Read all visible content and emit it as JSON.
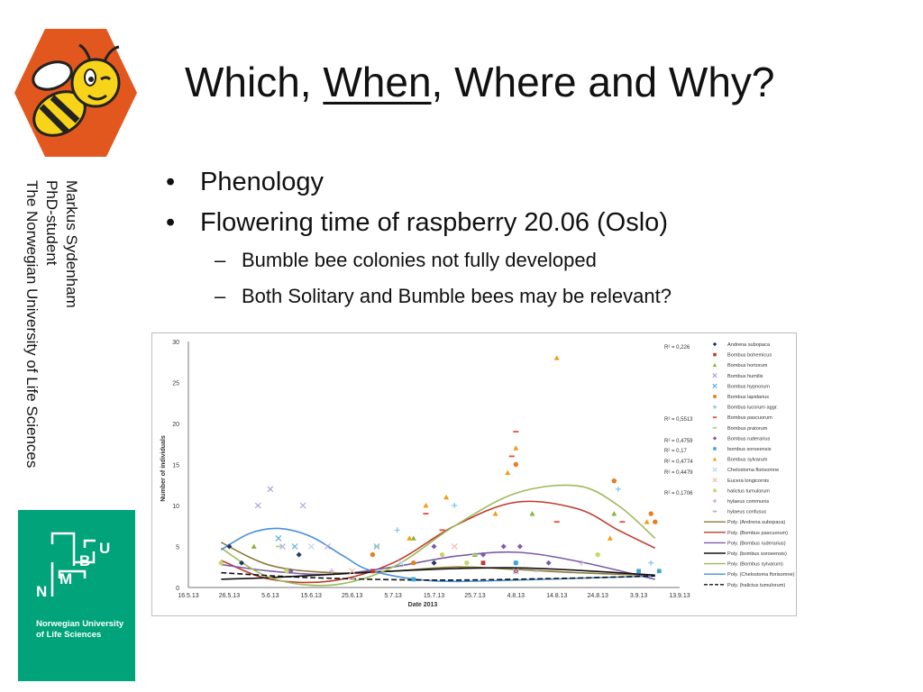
{
  "slide": {
    "title_prefix": "Which, ",
    "title_underlined": "When",
    "title_suffix": ", Where and Why?",
    "author": {
      "name": "Markus Sydenham",
      "role": "PhD-student",
      "institution": "The Norwegian University of Life Sciences"
    },
    "bullets": [
      {
        "text": "Phenology",
        "level": 1
      },
      {
        "text": "Flowering time of raspberry 20.06 (Oslo)",
        "level": 1
      },
      {
        "text": "Bumble bee colonies not fully developed",
        "level": 2
      },
      {
        "text": "Both Solitary and Bumble bees may be relevant?",
        "level": 2
      }
    ],
    "logos": {
      "bee_logo": "bee-mascot",
      "nmbu_letters": [
        "N",
        "M",
        "B",
        "U"
      ],
      "nmbu_name_line1": "Norwegian University",
      "nmbu_name_line2": "of Life Sciences",
      "nmbu_color": "#00a37a",
      "bee_hex_color": "#e2571e"
    }
  },
  "chart_data": {
    "type": "scatter",
    "title": "",
    "xlabel": "Date 2013",
    "ylabel": "Number of individuals",
    "ylim": [
      0,
      30
    ],
    "yticks": [
      0,
      5,
      10,
      15,
      20,
      25,
      30
    ],
    "xticks": [
      "16.5.13",
      "26.5.13",
      "5.6.13",
      "15.6.13",
      "25.6.13",
      "5.7.13",
      "15.7.13",
      "25.7.13",
      "4.8.13",
      "14.8.13",
      "24.8.13",
      "3.9.13",
      "13.9.13"
    ],
    "x_range_days": [
      0,
      120
    ],
    "grid": false,
    "legend_placement": "right",
    "r2_labels": [
      "R² = 0,226",
      "R² = 0,5513",
      "R² = 0,4759",
      "R² = 0,17",
      "R² = 0,4774",
      "R² = 0,4479",
      "R² = 0,1706"
    ],
    "legend": [
      {
        "name": "Andrena subopaca",
        "marker": "diamond",
        "color": "#1f3864"
      },
      {
        "name": "Bombus bohemicus",
        "marker": "square",
        "color": "#c0392b"
      },
      {
        "name": "Bombus hortorum",
        "marker": "triangle",
        "color": "#8db33a"
      },
      {
        "name": "Bombus humilis",
        "marker": "x",
        "color": "#a6a6d9"
      },
      {
        "name": "Bombus hypnorum",
        "marker": "x",
        "color": "#5dade2"
      },
      {
        "name": "Bombus lapidarius",
        "marker": "circle",
        "color": "#e67e22"
      },
      {
        "name": "Bombus lucorum aggr.",
        "marker": "plus",
        "color": "#85c1e9"
      },
      {
        "name": "Bombus pascuorum",
        "marker": "dash",
        "color": "#e74c3c"
      },
      {
        "name": "Bombus pratorum",
        "marker": "dash",
        "color": "#a9d18e"
      },
      {
        "name": "Bombus ruderarius",
        "marker": "diamond",
        "color": "#7d5ba6"
      },
      {
        "name": "bombus soroeensis",
        "marker": "square",
        "color": "#3fa7d6"
      },
      {
        "name": "Bombus sylvarum",
        "marker": "triangle",
        "color": "#f39c12"
      },
      {
        "name": "Chelostoma florisomne",
        "marker": "x",
        "color": "#b8d6e8"
      },
      {
        "name": "Eucera longicornis",
        "marker": "x",
        "color": "#f5b7b1"
      },
      {
        "name": "halictus tumulorum",
        "marker": "circle",
        "color": "#c5d86d"
      },
      {
        "name": "hylaeus communis",
        "marker": "plus",
        "color": "#c9a0dc"
      },
      {
        "name": "hylaeus confusus",
        "marker": "dash",
        "color": "#b3b3b3"
      },
      {
        "name": "Poly. (Andrena subopaca)",
        "marker": "line",
        "color": "#8c7a3a"
      },
      {
        "name": "Poly. (Bombus pascuorum)",
        "marker": "line",
        "color": "#c0392b"
      },
      {
        "name": "Poly. (Bombus ruderarius)",
        "marker": "line",
        "color": "#7d5ba6"
      },
      {
        "name": "Poly. (bombus soroeensis)",
        "marker": "line",
        "color": "#111111"
      },
      {
        "name": "Poly. (Bombus sylvarum)",
        "marker": "line",
        "color": "#9bbb59"
      },
      {
        "name": "Poly. (Chelostoma florisomne)",
        "marker": "line",
        "color": "#4a90d9"
      },
      {
        "name": "Poly. (halictus tumulorum)",
        "marker": "dashline",
        "color": "#111111"
      }
    ],
    "points": [
      {
        "s": 0,
        "x": 10,
        "y": 5
      },
      {
        "s": 0,
        "x": 13,
        "y": 3
      },
      {
        "s": 0,
        "x": 27,
        "y": 4
      },
      {
        "s": 0,
        "x": 60,
        "y": 3
      },
      {
        "s": 1,
        "x": 45,
        "y": 2
      },
      {
        "s": 1,
        "x": 72,
        "y": 3
      },
      {
        "s": 1,
        "x": 80,
        "y": 2
      },
      {
        "s": 2,
        "x": 16,
        "y": 5
      },
      {
        "s": 2,
        "x": 55,
        "y": 6
      },
      {
        "s": 2,
        "x": 70,
        "y": 4
      },
      {
        "s": 2,
        "x": 84,
        "y": 9
      },
      {
        "s": 2,
        "x": 104,
        "y": 9
      },
      {
        "s": 3,
        "x": 17,
        "y": 10
      },
      {
        "s": 3,
        "x": 20,
        "y": 12
      },
      {
        "s": 3,
        "x": 23,
        "y": 5
      },
      {
        "s": 3,
        "x": 28,
        "y": 10
      },
      {
        "s": 3,
        "x": 34,
        "y": 5
      },
      {
        "s": 3,
        "x": 80,
        "y": 2
      },
      {
        "s": 4,
        "x": 22,
        "y": 6
      },
      {
        "s": 4,
        "x": 26,
        "y": 5
      },
      {
        "s": 4,
        "x": 46,
        "y": 5
      },
      {
        "s": 5,
        "x": 45,
        "y": 4
      },
      {
        "s": 5,
        "x": 55,
        "y": 3
      },
      {
        "s": 5,
        "x": 80,
        "y": 15
      },
      {
        "s": 5,
        "x": 104,
        "y": 13
      },
      {
        "s": 5,
        "x": 113,
        "y": 9
      },
      {
        "s": 5,
        "x": 114,
        "y": 8
      },
      {
        "s": 6,
        "x": 51,
        "y": 7
      },
      {
        "s": 6,
        "x": 65,
        "y": 10
      },
      {
        "s": 6,
        "x": 80,
        "y": 3
      },
      {
        "s": 6,
        "x": 105,
        "y": 12
      },
      {
        "s": 6,
        "x": 113,
        "y": 3
      },
      {
        "s": 7,
        "x": 58,
        "y": 9
      },
      {
        "s": 7,
        "x": 62,
        "y": 7
      },
      {
        "s": 7,
        "x": 80,
        "y": 19
      },
      {
        "s": 7,
        "x": 79,
        "y": 16
      },
      {
        "s": 7,
        "x": 90,
        "y": 8
      },
      {
        "s": 7,
        "x": 106,
        "y": 8
      },
      {
        "s": 8,
        "x": 22,
        "y": 5
      },
      {
        "s": 8,
        "x": 46,
        "y": 5
      },
      {
        "s": 8,
        "x": 70,
        "y": 4
      },
      {
        "s": 9,
        "x": 25,
        "y": 2
      },
      {
        "s": 9,
        "x": 60,
        "y": 5
      },
      {
        "s": 9,
        "x": 72,
        "y": 4
      },
      {
        "s": 9,
        "x": 77,
        "y": 5
      },
      {
        "s": 9,
        "x": 81,
        "y": 5
      },
      {
        "s": 9,
        "x": 88,
        "y": 3
      },
      {
        "s": 10,
        "x": 55,
        "y": 1
      },
      {
        "s": 10,
        "x": 80,
        "y": 3
      },
      {
        "s": 10,
        "x": 110,
        "y": 2
      },
      {
        "s": 10,
        "x": 115,
        "y": 2
      },
      {
        "s": 11,
        "x": 54,
        "y": 6
      },
      {
        "s": 11,
        "x": 58,
        "y": 10
      },
      {
        "s": 11,
        "x": 63,
        "y": 11
      },
      {
        "s": 11,
        "x": 75,
        "y": 9
      },
      {
        "s": 11,
        "x": 78,
        "y": 14
      },
      {
        "s": 11,
        "x": 80,
        "y": 17
      },
      {
        "s": 11,
        "x": 90,
        "y": 28
      },
      {
        "s": 11,
        "x": 103,
        "y": 6
      },
      {
        "s": 11,
        "x": 112,
        "y": 8
      },
      {
        "s": 12,
        "x": 30,
        "y": 5
      },
      {
        "s": 12,
        "x": 52,
        "y": 3
      },
      {
        "s": 13,
        "x": 40,
        "y": 2
      },
      {
        "s": 13,
        "x": 65,
        "y": 5
      },
      {
        "s": 14,
        "x": 8,
        "y": 3
      },
      {
        "s": 14,
        "x": 24,
        "y": 2
      },
      {
        "s": 14,
        "x": 62,
        "y": 4
      },
      {
        "s": 14,
        "x": 68,
        "y": 3
      },
      {
        "s": 14,
        "x": 100,
        "y": 4
      },
      {
        "s": 15,
        "x": 35,
        "y": 2
      },
      {
        "s": 15,
        "x": 96,
        "y": 3
      },
      {
        "s": 16,
        "x": 40,
        "y": 1
      },
      {
        "s": 16,
        "x": 85,
        "y": 2
      }
    ],
    "trend_lines": [
      {
        "s": 17,
        "x": [
          8,
          20,
          35,
          50,
          65,
          80,
          95,
          112
        ],
        "y": [
          5.5,
          2.7,
          1.8,
          2.0,
          2.5,
          2.2,
          1.8,
          1.5
        ]
      },
      {
        "s": 18,
        "x": [
          8,
          20,
          35,
          50,
          65,
          80,
          95,
          105,
          114
        ],
        "y": [
          3.3,
          1.0,
          0.8,
          3.0,
          7.5,
          10.4,
          9.6,
          7.0,
          4.8
        ]
      },
      {
        "s": 19,
        "x": [
          8,
          20,
          35,
          50,
          65,
          80,
          95,
          114
        ],
        "y": [
          2.8,
          2.0,
          1.6,
          2.5,
          3.8,
          4.3,
          3.2,
          1.0
        ]
      },
      {
        "s": 20,
        "x": [
          8,
          20,
          35,
          50,
          65,
          80,
          95,
          114
        ],
        "y": [
          1.0,
          1.2,
          1.6,
          2.0,
          2.3,
          2.4,
          2.1,
          1.5
        ]
      },
      {
        "s": 21,
        "x": [
          8,
          20,
          35,
          50,
          65,
          80,
          95,
          105,
          114
        ],
        "y": [
          4.8,
          1.2,
          0.3,
          2.5,
          7.5,
          11.5,
          12.4,
          10.0,
          6.0
        ]
      },
      {
        "s": 22,
        "x": [
          8,
          15,
          22,
          30,
          38,
          45,
          60,
          80,
          100,
          114
        ],
        "y": [
          4.6,
          6.6,
          7.2,
          6.2,
          3.8,
          2.0,
          0.8,
          0.9,
          1.2,
          1.4
        ]
      },
      {
        "s": 23,
        "x": [
          8,
          30,
          60,
          90,
          114
        ],
        "y": [
          1.8,
          1.2,
          0.9,
          1.1,
          1.4
        ]
      }
    ]
  }
}
